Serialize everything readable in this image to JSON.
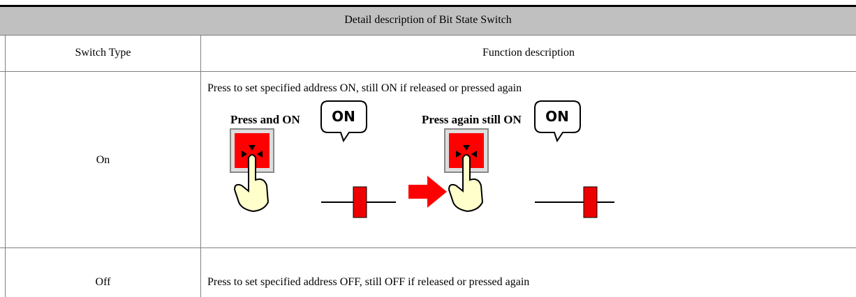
{
  "table": {
    "title": "Detail description of Bit State Switch",
    "header": [
      "Switch Type",
      "Function description"
    ],
    "rows": [
      [
        "On",
        "Press to set specified address ON, still ON if released or pressed again"
      ],
      [
        "Off",
        "Press to set specified address OFF, still OFF if released or pressed again"
      ]
    ]
  },
  "illustration": {
    "captions": [
      "Press and ON",
      "Press again still ON"
    ],
    "bubbles": [
      "ON",
      "ON"
    ]
  }
}
